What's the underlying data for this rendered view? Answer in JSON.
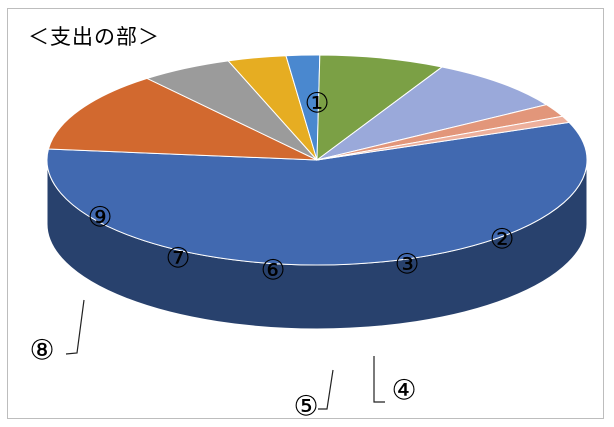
{
  "chart_data": {
    "type": "pie",
    "title": "＜支出の部＞",
    "categories": [
      "①",
      "②",
      "③",
      "④",
      "⑤",
      "⑥",
      "⑦",
      "⑧",
      "⑨"
    ],
    "values": [
      57.5,
      12.5,
      5.5,
      3.5,
      2.0,
      7.5,
      8.5,
      2.0,
      1.0
    ],
    "colors": [
      "#4169B0",
      "#D2692F",
      "#9B9B9B",
      "#E6AD22",
      "#4A88CF",
      "#7BA045",
      "#9AA9DA",
      "#E2967A",
      "#EDB09C"
    ],
    "legend": "none",
    "three_d": true
  }
}
